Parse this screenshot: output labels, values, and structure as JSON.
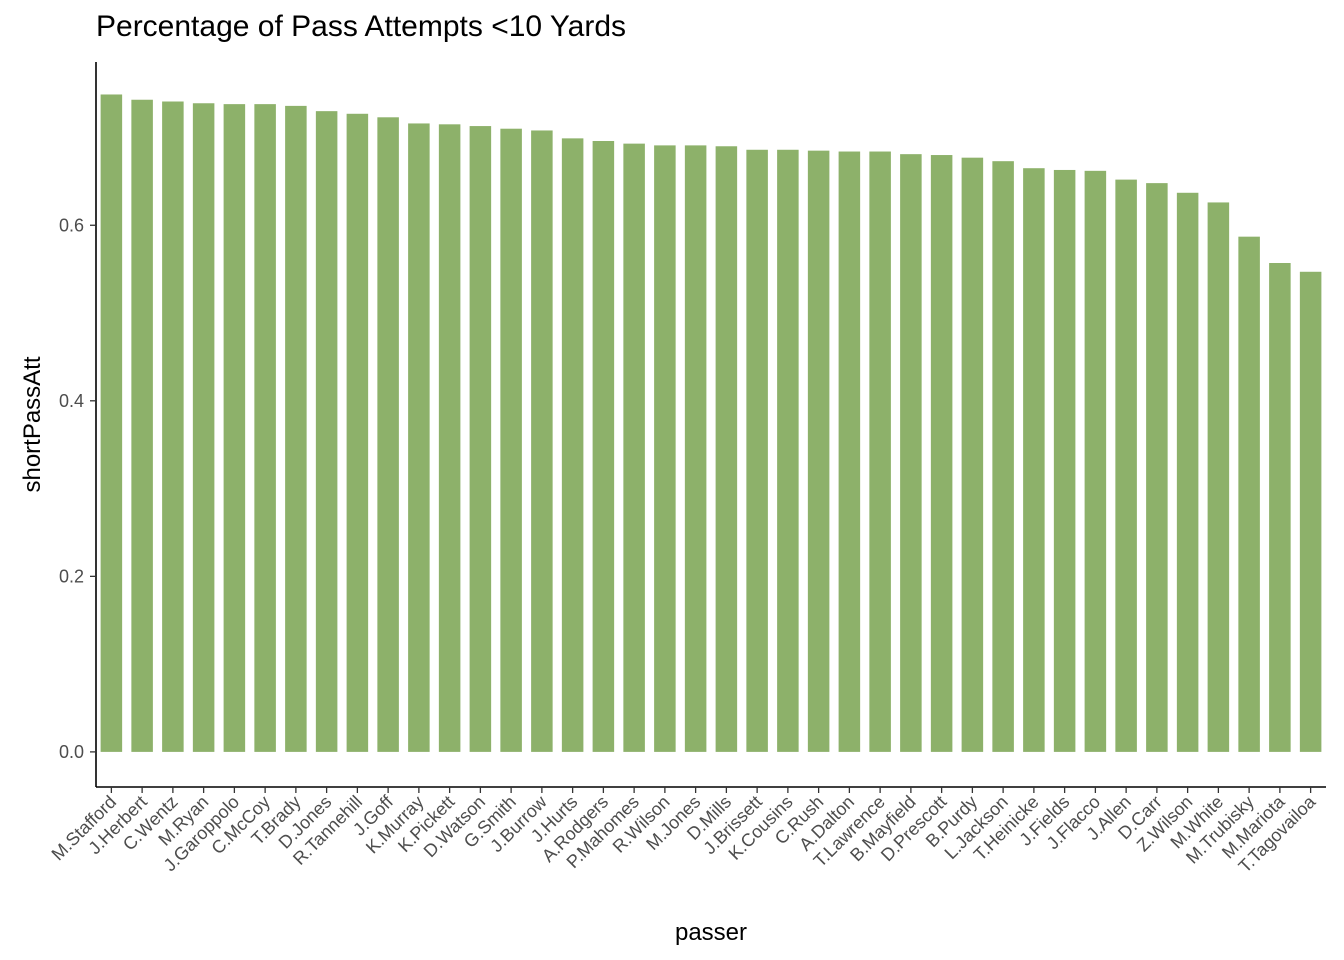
{
  "chart_data": {
    "type": "bar",
    "title": "Percentage of Pass Attempts <10 Yards",
    "xlabel": "passer",
    "ylabel": "shortPassAtt",
    "ylim": [
      -0.04,
      0.786
    ],
    "yticks": [
      0.0,
      0.2,
      0.4,
      0.6
    ],
    "ytick_labels": [
      "0.0",
      "0.2",
      "0.4",
      "0.6"
    ],
    "grid": false,
    "bar_color": "#8db16a",
    "categories": [
      "M.Stafford",
      "J.Herbert",
      "C.Wentz",
      "M.Ryan",
      "J.Garoppolo",
      "C.McCoy",
      "T.Brady",
      "D.Jones",
      "R.Tannehill",
      "J.Goff",
      "K.Murray",
      "K.Pickett",
      "D.Watson",
      "G.Smith",
      "J.Burrow",
      "J.Hurts",
      "A.Rodgers",
      "P.Mahomes",
      "R.Wilson",
      "M.Jones",
      "D.Mills",
      "J.Brissett",
      "K.Cousins",
      "C.Rush",
      "A.Dalton",
      "T.Lawrence",
      "B.Mayfield",
      "D.Prescott",
      "B.Purdy",
      "L.Jackson",
      "T.Heinicke",
      "J.Fields",
      "J.Flacco",
      "J.Allen",
      "D.Carr",
      "Z.Wilson",
      "M.White",
      "M.Trubisky",
      "M.Mariota",
      "T.Tagovailoa"
    ],
    "values": [
      0.749,
      0.743,
      0.741,
      0.739,
      0.738,
      0.738,
      0.736,
      0.73,
      0.727,
      0.723,
      0.716,
      0.715,
      0.713,
      0.71,
      0.708,
      0.699,
      0.696,
      0.693,
      0.691,
      0.691,
      0.69,
      0.686,
      0.686,
      0.685,
      0.684,
      0.684,
      0.681,
      0.68,
      0.677,
      0.673,
      0.665,
      0.663,
      0.662,
      0.652,
      0.648,
      0.637,
      0.626,
      0.587,
      0.557,
      0.547
    ]
  }
}
